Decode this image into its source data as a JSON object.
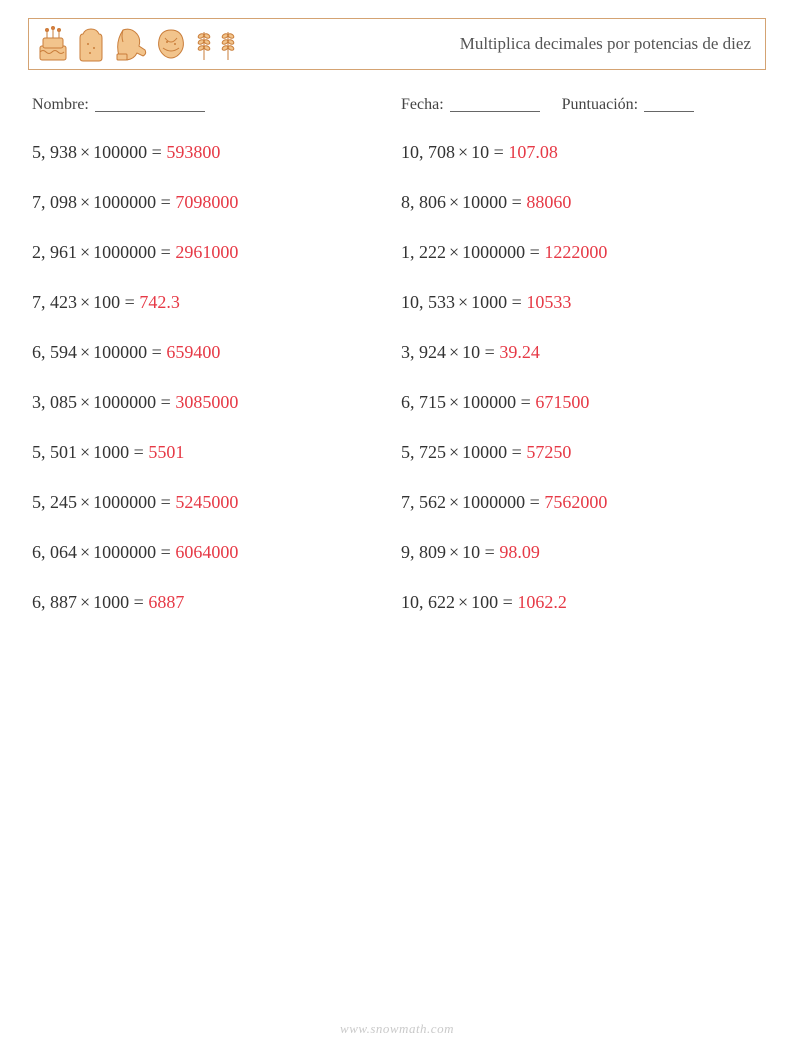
{
  "header": {
    "title": "Multiplica decimales por potencias de diez",
    "icons": [
      "cake",
      "bread",
      "mitt",
      "cookie",
      "wheat1",
      "wheat2"
    ],
    "border_color": "#d4a373",
    "icon_fill": "#e8b478",
    "icon_stroke": "#c97d3a"
  },
  "info": {
    "name_label": "Nombre:",
    "date_label": "Fecha:",
    "score_label": "Puntuación:"
  },
  "colors": {
    "text": "#333333",
    "answer": "#e63946",
    "background": "#ffffff"
  },
  "typography": {
    "problem_fontsize": 18,
    "title_fontsize": 17,
    "info_fontsize": 16,
    "font_family": "Georgia, Times New Roman, serif"
  },
  "footer": {
    "text": "www.snowmath.com"
  },
  "problems": {
    "left": [
      {
        "a": "5, 938",
        "b": "100000",
        "ans": "593800"
      },
      {
        "a": "7, 098",
        "b": "1000000",
        "ans": "7098000"
      },
      {
        "a": "2, 961",
        "b": "1000000",
        "ans": "2961000"
      },
      {
        "a": "7, 423",
        "b": "100",
        "ans": "742.3"
      },
      {
        "a": "6, 594",
        "b": "100000",
        "ans": "659400"
      },
      {
        "a": "3, 085",
        "b": "1000000",
        "ans": "3085000"
      },
      {
        "a": "5, 501",
        "b": "1000",
        "ans": "5501"
      },
      {
        "a": "5, 245",
        "b": "1000000",
        "ans": "5245000"
      },
      {
        "a": "6, 064",
        "b": "1000000",
        "ans": "6064000"
      },
      {
        "a": "6, 887",
        "b": "1000",
        "ans": "6887"
      }
    ],
    "right": [
      {
        "a": "10, 708",
        "b": "10",
        "ans": "107.08"
      },
      {
        "a": "8, 806",
        "b": "10000",
        "ans": "88060"
      },
      {
        "a": "1, 222",
        "b": "1000000",
        "ans": "1222000"
      },
      {
        "a": "10, 533",
        "b": "1000",
        "ans": "10533"
      },
      {
        "a": "3, 924",
        "b": "10",
        "ans": "39.24"
      },
      {
        "a": "6, 715",
        "b": "100000",
        "ans": "671500"
      },
      {
        "a": "5, 725",
        "b": "10000",
        "ans": "57250"
      },
      {
        "a": "7, 562",
        "b": "1000000",
        "ans": "7562000"
      },
      {
        "a": "9, 809",
        "b": "10",
        "ans": "98.09"
      },
      {
        "a": "10, 622",
        "b": "100",
        "ans": "1062.2"
      }
    ]
  }
}
